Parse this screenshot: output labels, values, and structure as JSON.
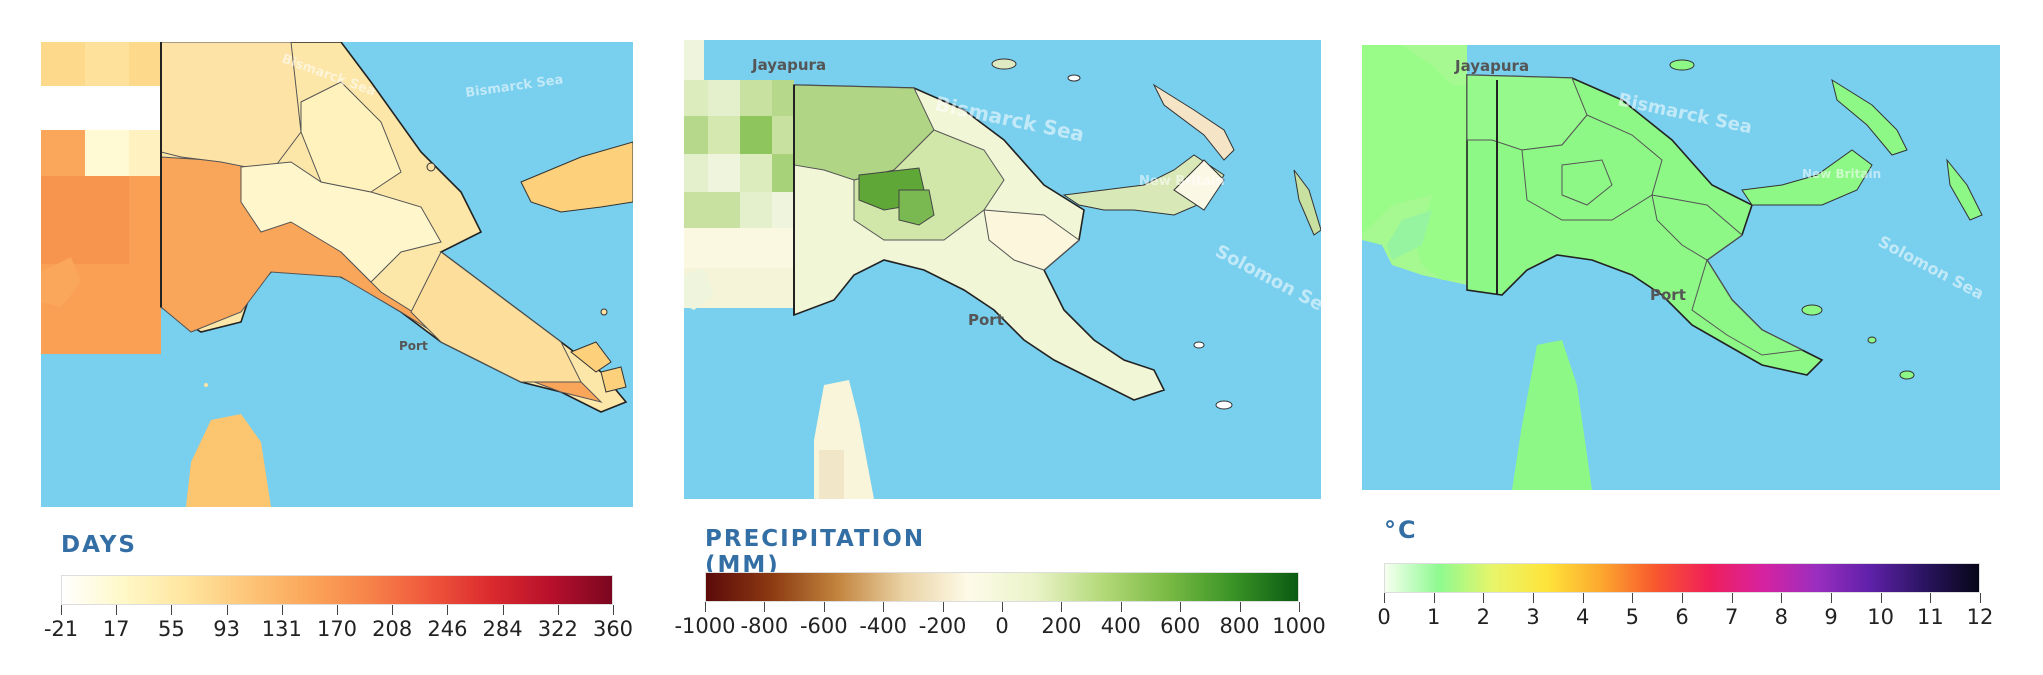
{
  "panels": [
    {
      "legend_title": "DAYS",
      "colors": [
        "#ffffff",
        "#fff8c8",
        "#ffe6a0",
        "#fdc77a",
        "#fba75b",
        "#f7844a",
        "#ef573c",
        "#db2b2e",
        "#b8102c",
        "#7a0620"
      ],
      "ticks": [
        "-21",
        "17",
        "55",
        "93",
        "131",
        "170",
        "208",
        "246",
        "284",
        "322",
        "360"
      ],
      "map_labels": [
        "Bismarck Sea",
        "Bismarck Sea",
        "Port"
      ]
    },
    {
      "legend_title": "PRECIPITATION (MM)",
      "colors": [
        "#5c0a0a",
        "#8c3a12",
        "#c2843e",
        "#ead2a4",
        "#fdfbe8",
        "#eaf3c8",
        "#b5da7a",
        "#7bbb45",
        "#3a9426",
        "#0b5a12"
      ],
      "ticks": [
        "-1000",
        "-800",
        "-600",
        "-400",
        "-200",
        "0",
        "200",
        "400",
        "600",
        "800",
        "1000"
      ],
      "map_labels": [
        "Jayapura",
        "Bismarck Sea",
        "New Britain",
        "Solomon Sea",
        "Port"
      ]
    },
    {
      "legend_title": "°C",
      "colors": [
        "#f6fff0",
        "#8dfa90",
        "#e8f56a",
        "#fee43a",
        "#fca82e",
        "#f8582e",
        "#f01f5a",
        "#d622a0",
        "#9a2ec0",
        "#5e20a8",
        "#2a1460",
        "#060618"
      ],
      "ticks": [
        "0",
        "1",
        "2",
        "3",
        "4",
        "5",
        "6",
        "7",
        "8",
        "9",
        "10",
        "11",
        "12"
      ],
      "map_labels": [
        "Jayapura",
        "Bismarck Sea",
        "New Britain",
        "Solomon Sea",
        "Port"
      ]
    }
  ]
}
